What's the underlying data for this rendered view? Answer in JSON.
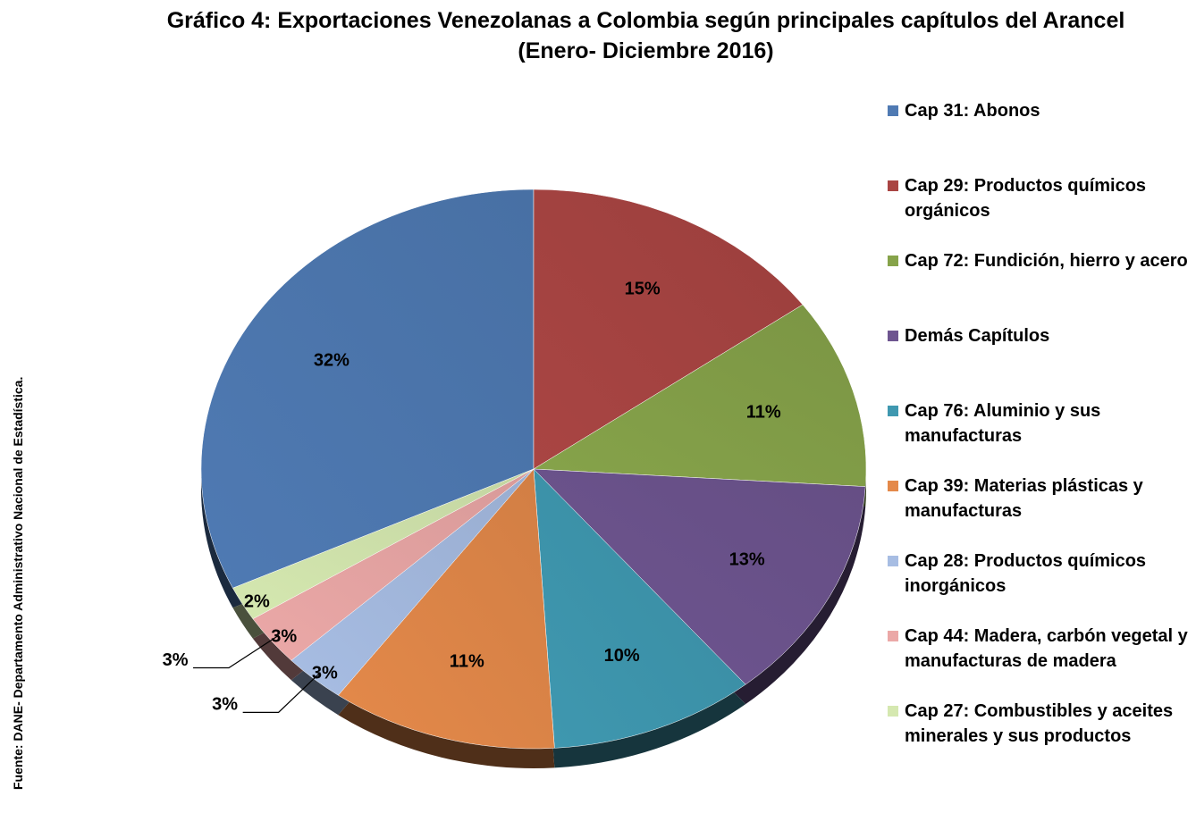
{
  "chart_data": {
    "type": "pie",
    "title": "Gráfico 4: Exportaciones Venezolanas a Colombia según principales capítulos del Arancel (Enero- Diciembre 2016)",
    "categories": [
      "Cap 31: Abonos",
      "Cap 29: Productos químicos orgánicos",
      "Cap 72: Fundición, hierro y acero",
      "Demás Capítulos",
      "Cap 76: Aluminio y sus manufacturas",
      "Cap 39: Materias plásticas y manufacturas",
      "Cap 28: Productos químicos inorgánicos",
      "Cap 44: Madera, carbón vegetal y manufacturas de madera",
      "Cap 27: Combustibles y aceites minerales y sus productos"
    ],
    "values": [
      32,
      15,
      11,
      13,
      10,
      11,
      3,
      3,
      2
    ],
    "value_labels": [
      "32%",
      "15%",
      "11%",
      "13%",
      "10%",
      "11%",
      "3%",
      "3%",
      "2%"
    ],
    "colors": [
      "#4f7ab3",
      "#a94543",
      "#86a34a",
      "#6e5590",
      "#3f98b0",
      "#e4894a",
      "#a7bde3",
      "#eba8a7",
      "#d5e8b0"
    ],
    "legend": "right",
    "source": "Fuente: DANE- Departamento Administrativo Nacional de Estadística."
  }
}
